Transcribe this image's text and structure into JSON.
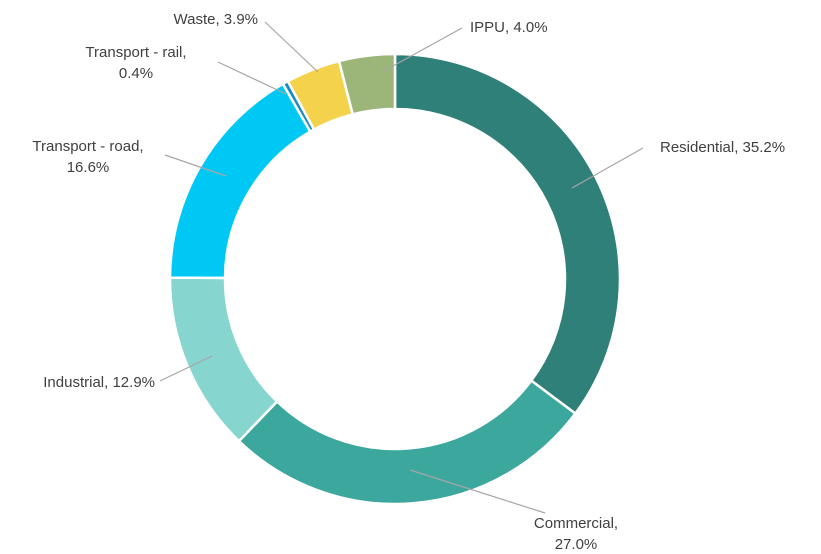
{
  "chart_data": {
    "type": "donut",
    "categories": [
      "Residential",
      "Commercial",
      "Industrial",
      "Transport - road",
      "Transport - rail",
      "Waste",
      "IPPU"
    ],
    "values": [
      35.2,
      27.0,
      12.9,
      16.6,
      0.4,
      3.9,
      4.0
    ],
    "value_labels": [
      [
        "Residential, 35.2%"
      ],
      [
        "Commercial,",
        "27.0%"
      ],
      [
        "Industrial, 12.9%"
      ],
      [
        "Transport - road,",
        "16.6%"
      ],
      [
        "Transport - rail,",
        "0.4%"
      ],
      [
        "Waste, 3.9%"
      ],
      [
        "IPPU, 4.0%"
      ]
    ],
    "colors": [
      "#2e8078",
      "#3ca79c",
      "#86d5cf",
      "#00c8f5",
      "#1b8cc0",
      "#f5d24c",
      "#9cb67a"
    ]
  }
}
